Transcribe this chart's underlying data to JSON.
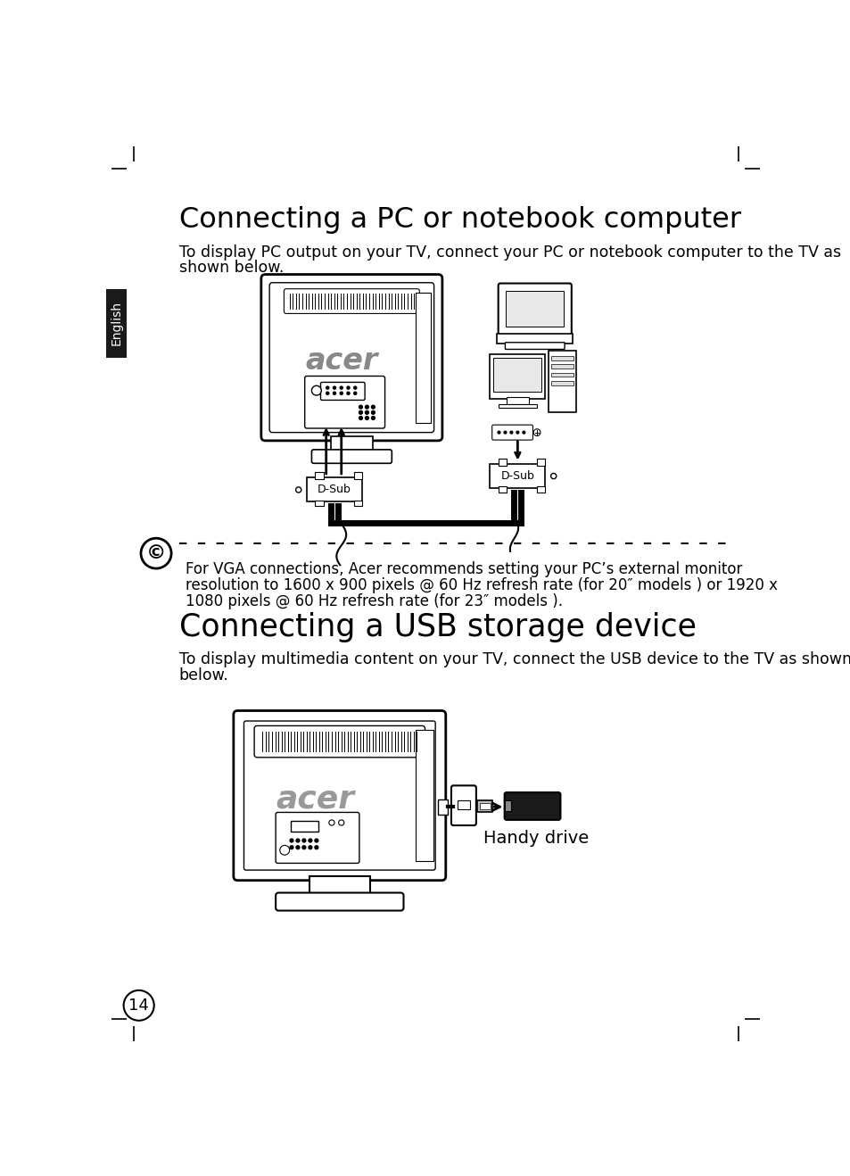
{
  "bg_color": "#ffffff",
  "page_num": "14",
  "section1_title": "Connecting a PC or notebook computer",
  "section1_body1": "To display PC output on your TV, connect your PC or notebook computer to the TV as",
  "section1_body2": "shown below.",
  "note_text1": "For VGA connections, Acer recommends setting your PC’s external monitor",
  "note_text2": "resolution to 1600 x 900 pixels @ 60 Hz refresh rate (for 20″ models ) or 1920 x",
  "note_text3": "1080 pixels @ 60 Hz refresh rate (for 23″ models ).",
  "section2_title": "Connecting a USB storage device",
  "section2_body1": "To display multimedia content on your TV, connect the USB device to the TV as shown",
  "section2_body2": "below.",
  "handy_drive_label": "Handy drive",
  "tab_label": "English",
  "title_fontsize": 23,
  "body_fontsize": 12.5,
  "note_fontsize": 12,
  "tab_fontsize": 10,
  "section2_title_fontsize": 25
}
